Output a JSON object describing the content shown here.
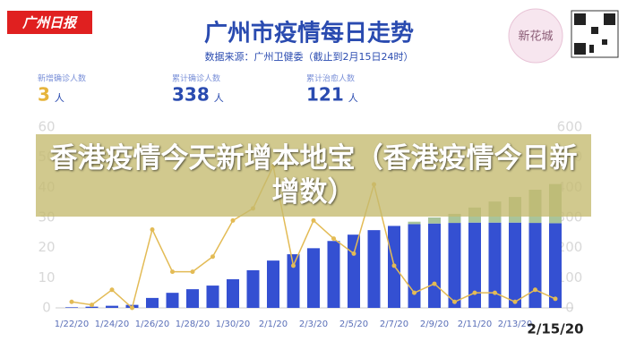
{
  "logo": "广州日报",
  "badge": "新花城",
  "stats": [
    {
      "label": "新增确诊人数",
      "value": 3,
      "unit": "人"
    },
    {
      "label": "累计确诊人数",
      "value": 338,
      "unit": "人"
    },
    {
      "label": "累计治愈人数",
      "value": 121,
      "unit": "人"
    }
  ],
  "banner": "香港疫情今天新增本地宝（香港疫情今日新增数）",
  "chart_data": {
    "type": "bar",
    "title": "广州市疫情每日走势",
    "subtitle": "数据来源：广州卫健委（截止到2月15日24时）",
    "categories": [
      "1/22/20",
      null,
      "1/24/20",
      null,
      "1/26/20",
      null,
      "1/28/20",
      null,
      "1/30/20",
      null,
      "2/1/20",
      null,
      "2/3/20",
      null,
      "2/5/20",
      null,
      "2/7/20",
      null,
      "2/9/20",
      null,
      "2/11/20",
      null,
      "2/13/20",
      null,
      "2/15/20"
    ],
    "series": [
      {
        "color": "#3450d2",
        "axis": "y2",
        "values": [
          2,
          4,
          7,
          10,
          33,
          50,
          62,
          74,
          95,
          125,
          157,
          178,
          198,
          222,
          243,
          258,
          272,
          278,
          280,
          282,
          283,
          283,
          283,
          282,
          281
        ]
      },
      {
        "color": "#a9c49a",
        "axis": "y2",
        "values": [
          0,
          0,
          0,
          0,
          0,
          0,
          0,
          0,
          0,
          0,
          0,
          0,
          0,
          0,
          0,
          0,
          0,
          8,
          20,
          30,
          50,
          70,
          85,
          110,
          130
        ]
      },
      {
        "type": "line",
        "color": "#e3bb55",
        "values": [
          2,
          1,
          6,
          0,
          26,
          12,
          12,
          17,
          29,
          33,
          47,
          14,
          29,
          23,
          18,
          41,
          14,
          5,
          8,
          2,
          5,
          5,
          2,
          6,
          3
        ]
      }
    ],
    "ylim": [
      0,
      60
    ],
    "yticks": [
      0,
      10,
      20,
      30,
      40,
      50,
      60
    ],
    "y2lim": [
      0,
      600
    ],
    "y2ticks": [
      0,
      100,
      200,
      300,
      400,
      500,
      600
    ]
  }
}
